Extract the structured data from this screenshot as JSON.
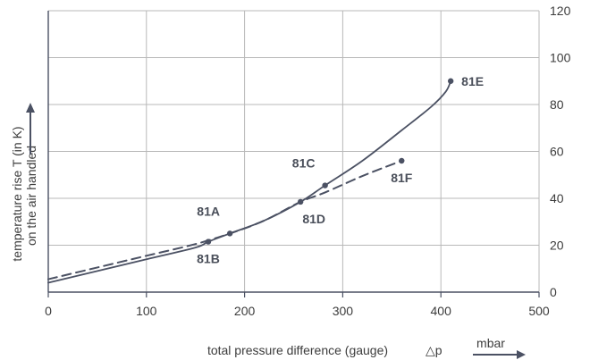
{
  "chart_data": {
    "type": "line",
    "xlabel": "total pressure difference (gauge)",
    "xsymbol": "△p",
    "xunit": "mbar",
    "ylabel_line1": "temperature rise T (in K)",
    "ylabel_line2": "on the air handled",
    "xlim": [
      0,
      500
    ],
    "ylim": [
      0,
      120
    ],
    "x_ticks": [
      0,
      100,
      200,
      300,
      400,
      500
    ],
    "y_ticks": [
      0,
      20,
      40,
      60,
      80,
      100,
      120
    ],
    "grid": true,
    "colors": {
      "line": "#4b5163",
      "grid": "#b8b8b8",
      "axis": "#4b5163",
      "text": "#3c3c3c"
    },
    "series": [
      {
        "style": "solid",
        "x": [
          0,
          50,
          100,
          150,
          163,
          185,
          220,
          257,
          282,
          320,
          360,
          390,
          405,
          410
        ],
        "y": [
          4,
          9,
          14,
          19,
          21.5,
          25,
          30.5,
          38.5,
          45.5,
          56,
          69,
          79,
          85.5,
          90
        ]
      },
      {
        "style": "dashed",
        "x": [
          0,
          50,
          100,
          150,
          185,
          220,
          257,
          282,
          320,
          360
        ],
        "y": [
          5.5,
          10.5,
          15.5,
          20.5,
          25,
          30.5,
          38.5,
          42.5,
          49.5,
          56
        ]
      }
    ],
    "points": [
      {
        "label": "81A",
        "x": 185,
        "y": 25,
        "label_pos": "above-left"
      },
      {
        "label": "81B",
        "x": 163,
        "y": 21.5,
        "label_pos": "below"
      },
      {
        "label": "81C",
        "x": 282,
        "y": 45.5,
        "label_pos": "above-left"
      },
      {
        "label": "81D",
        "x": 257,
        "y": 38.5,
        "label_pos": "below-right"
      },
      {
        "label": "81E",
        "x": 410,
        "y": 90,
        "label_pos": "right"
      },
      {
        "label": "81F",
        "x": 360,
        "y": 56,
        "label_pos": "below"
      }
    ]
  }
}
